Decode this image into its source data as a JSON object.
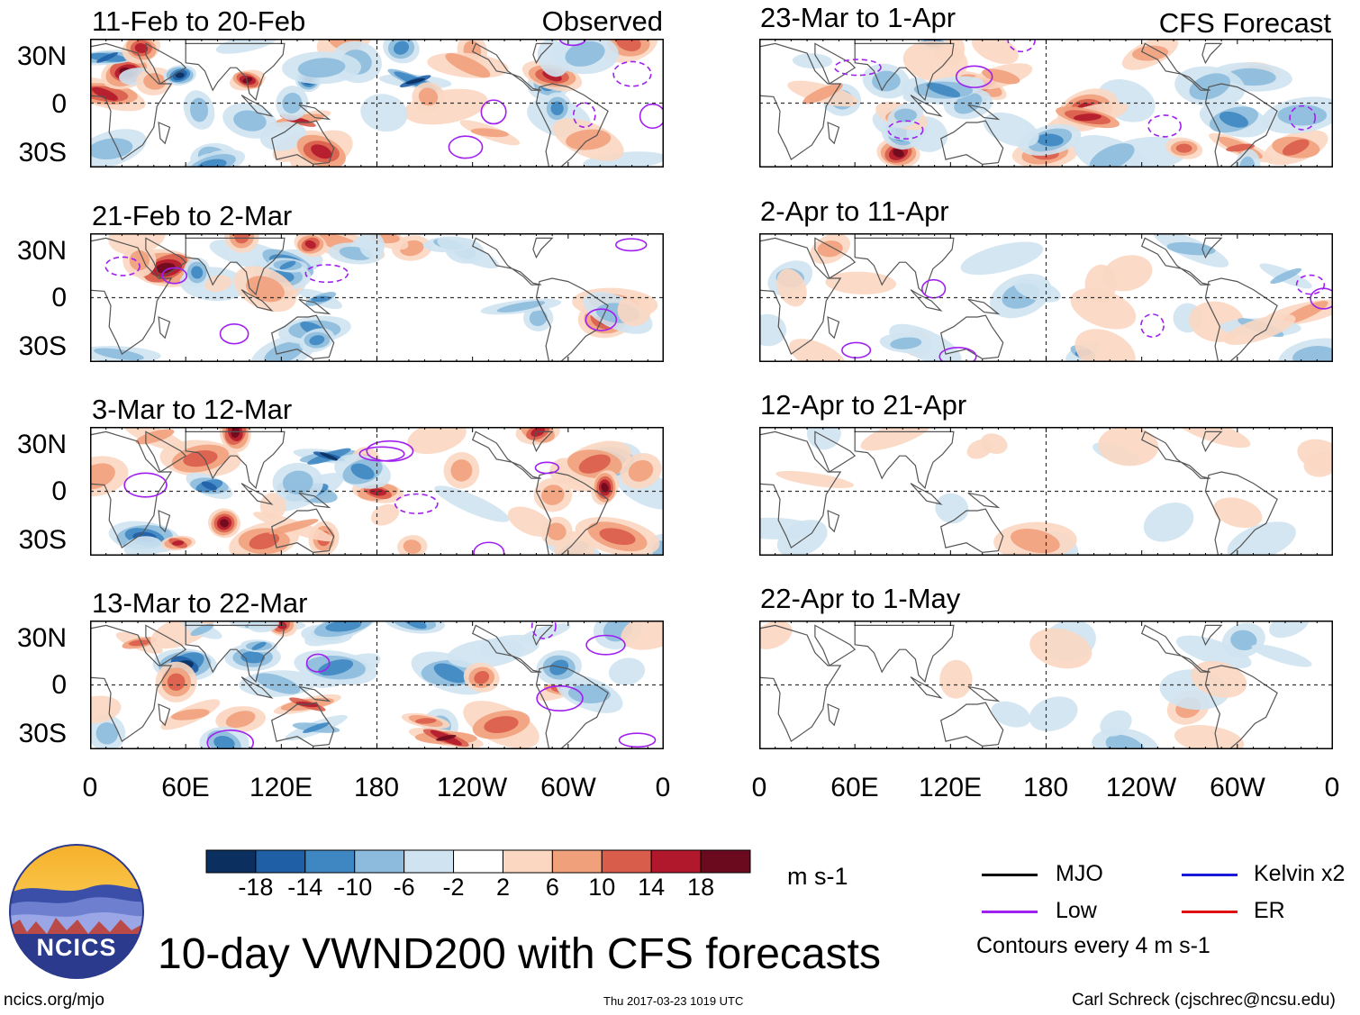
{
  "figure": {
    "title": "10-day VWND200 with CFS forecasts",
    "observed_label": "Observed",
    "forecast_label": "CFS Forecast",
    "footer_left": "ncics.org/mjo",
    "footer_center": "Thu 2017-03-23 1019 UTC",
    "footer_right": "Carl Schreck (cjschrec@ncsu.edu)",
    "logo_text": "NCICS"
  },
  "observed_panels": [
    {
      "period": "11-Feb to 20-Feb"
    },
    {
      "period": "21-Feb to 2-Mar"
    },
    {
      "period": "3-Mar to 12-Mar"
    },
    {
      "period": "13-Mar to 22-Mar"
    }
  ],
  "forecast_panels": [
    {
      "period": "23-Mar to 1-Apr"
    },
    {
      "period": "2-Apr to 11-Apr"
    },
    {
      "period": "12-Apr to 21-Apr"
    },
    {
      "period": "22-Apr to 1-May"
    }
  ],
  "axes": {
    "lat_labels": [
      "30N",
      "0",
      "30S"
    ],
    "lon_labels": [
      "0",
      "60E",
      "120E",
      "180",
      "120W",
      "60W",
      "0"
    ]
  },
  "colorbar": {
    "unit": "m s-1",
    "ticks": [
      "-18",
      "-14",
      "-10",
      "-6",
      "-2",
      "2",
      "6",
      "10",
      "14",
      "18"
    ],
    "colors": [
      "#0b2f5e",
      "#1f5fa6",
      "#3f87c2",
      "#8cbbdd",
      "#cfe3f1",
      "#ffffff",
      "#fbd7c2",
      "#f1a07c",
      "#d95d4b",
      "#b2182b",
      "#6b0a1e"
    ]
  },
  "legend": {
    "mjo": "MJO",
    "kelvin": "Kelvin x2",
    "low": "Low",
    "er": "ER",
    "note": "Contours every 4 m s-1",
    "mjo_color": "#000000",
    "kelvin_color": "#1a1adb",
    "low_color": "#a020f0",
    "er_color": "#e01010"
  }
}
